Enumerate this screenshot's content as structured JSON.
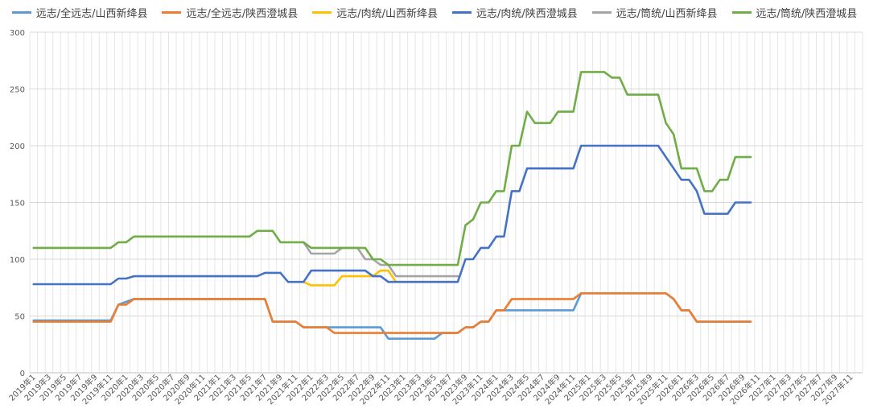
{
  "chart_data": {
    "type": "line",
    "title": "",
    "xlabel": "",
    "ylabel": "",
    "ylim": [
      0,
      300
    ],
    "yticks": [
      0,
      50,
      100,
      150,
      200,
      250,
      300
    ],
    "grid": true,
    "legend_position": "top",
    "x_tick_labels": [
      "2019年1",
      "2019年3",
      "2019年5",
      "2019年7",
      "2019年9",
      "2019年11",
      "2020年1",
      "2020年3",
      "2020年5",
      "2020年7",
      "2020年9",
      "2020年11",
      "2021年1",
      "2021年3",
      "2021年5",
      "2021年7",
      "2021年9",
      "2021年11",
      "2022年1",
      "2022年3",
      "2022年5",
      "2022年7",
      "2022年9",
      "2022年11",
      "2023年1",
      "2023年3",
      "2023年5",
      "2023年7",
      "2023年9",
      "2023年11",
      "2024年1",
      "2024年3",
      "2024年5",
      "2024年7",
      "2024年9",
      "2024年11",
      "2025年1",
      "2025年3",
      "2025年5",
      "2025年7",
      "2025年9",
      "2025年11",
      "2026年1",
      "2026年3",
      "2026年5",
      "2026年7",
      "2026年9",
      "2026年11",
      "2027年1",
      "2027年3",
      "2027年5",
      "2027年7",
      "2027年9",
      "2027年11"
    ],
    "n_months": 108,
    "series": [
      {
        "name": "远志/全远志/山西新绛县",
        "color": "#5B9BD5",
        "points": [
          [
            0,
            46
          ],
          [
            10,
            46
          ],
          [
            11,
            60
          ],
          [
            13,
            65
          ],
          [
            30,
            65
          ],
          [
            31,
            45
          ],
          [
            34,
            45
          ],
          [
            35,
            40
          ],
          [
            38,
            40
          ],
          [
            39,
            40
          ],
          [
            45,
            40
          ],
          [
            46,
            30
          ],
          [
            52,
            30
          ],
          [
            53,
            35
          ],
          [
            55,
            35
          ],
          [
            56,
            40
          ],
          [
            57,
            40
          ],
          [
            58,
            45
          ],
          [
            59,
            45
          ],
          [
            60,
            55
          ],
          [
            70,
            55
          ],
          [
            71,
            70
          ],
          [
            73,
            70
          ],
          [
            82,
            70
          ],
          [
            83,
            65
          ],
          [
            84,
            55
          ],
          [
            85,
            55
          ],
          [
            86,
            45
          ],
          [
            89,
            45
          ],
          [
            93,
            45
          ]
        ]
      },
      {
        "name": "远志/全远志/陕西澄城县",
        "color": "#ED7D31",
        "points": [
          [
            0,
            45
          ],
          [
            10,
            45
          ],
          [
            11,
            60
          ],
          [
            12,
            60
          ],
          [
            13,
            65
          ],
          [
            30,
            65
          ],
          [
            31,
            45
          ],
          [
            34,
            45
          ],
          [
            35,
            40
          ],
          [
            38,
            40
          ],
          [
            39,
            35
          ],
          [
            55,
            35
          ],
          [
            56,
            40
          ],
          [
            57,
            40
          ],
          [
            58,
            45
          ],
          [
            59,
            45
          ],
          [
            60,
            55
          ],
          [
            61,
            55
          ],
          [
            62,
            65
          ],
          [
            70,
            65
          ],
          [
            71,
            70
          ],
          [
            82,
            70
          ],
          [
            83,
            65
          ],
          [
            84,
            55
          ],
          [
            85,
            55
          ],
          [
            86,
            45
          ],
          [
            93,
            45
          ]
        ]
      },
      {
        "name": "远志/肉统/山西新绛县",
        "color": "#FFC000",
        "points": [
          [
            35,
            80
          ],
          [
            36,
            77
          ],
          [
            39,
            77
          ],
          [
            40,
            85
          ],
          [
            43,
            85
          ],
          [
            44,
            85
          ],
          [
            45,
            90
          ],
          [
            46,
            90
          ],
          [
            47,
            80
          ],
          [
            55,
            80
          ]
        ]
      },
      {
        "name": "远志/肉统/陕西澄城县",
        "color": "#4472C4",
        "points": [
          [
            0,
            78
          ],
          [
            10,
            78
          ],
          [
            11,
            83
          ],
          [
            12,
            83
          ],
          [
            13,
            85
          ],
          [
            29,
            85
          ],
          [
            30,
            88
          ],
          [
            32,
            88
          ],
          [
            33,
            80
          ],
          [
            35,
            80
          ],
          [
            36,
            90
          ],
          [
            43,
            90
          ],
          [
            44,
            85
          ],
          [
            45,
            85
          ],
          [
            46,
            80
          ],
          [
            55,
            80
          ],
          [
            56,
            100
          ],
          [
            57,
            100
          ],
          [
            58,
            110
          ],
          [
            59,
            110
          ],
          [
            60,
            120
          ],
          [
            61,
            120
          ],
          [
            62,
            160
          ],
          [
            63,
            160
          ],
          [
            64,
            180
          ],
          [
            70,
            180
          ],
          [
            71,
            200
          ],
          [
            81,
            200
          ],
          [
            82,
            190
          ],
          [
            83,
            180
          ],
          [
            84,
            170
          ],
          [
            85,
            170
          ],
          [
            86,
            160
          ],
          [
            87,
            140
          ],
          [
            90,
            140
          ],
          [
            91,
            150
          ],
          [
            93,
            150
          ]
        ]
      },
      {
        "name": "远志/筒统/山西新绛县",
        "color": "#A5A5A5",
        "points": [
          [
            35,
            115
          ],
          [
            36,
            105
          ],
          [
            38,
            105
          ],
          [
            39,
            105
          ],
          [
            40,
            110
          ],
          [
            42,
            110
          ],
          [
            43,
            100
          ],
          [
            44,
            100
          ],
          [
            45,
            95
          ],
          [
            46,
            95
          ],
          [
            47,
            85
          ],
          [
            55,
            85
          ]
        ]
      },
      {
        "name": "远志/筒统/陕西澄城县",
        "color": "#70AD47",
        "points": [
          [
            0,
            110
          ],
          [
            10,
            110
          ],
          [
            11,
            115
          ],
          [
            12,
            115
          ],
          [
            13,
            120
          ],
          [
            26,
            120
          ],
          [
            27,
            120
          ],
          [
            28,
            120
          ],
          [
            29,
            125
          ],
          [
            31,
            125
          ],
          [
            32,
            115
          ],
          [
            34,
            115
          ],
          [
            35,
            115
          ],
          [
            36,
            110
          ],
          [
            42,
            110
          ],
          [
            43,
            110
          ],
          [
            44,
            100
          ],
          [
            45,
            100
          ],
          [
            46,
            95
          ],
          [
            47,
            95
          ],
          [
            48,
            95
          ],
          [
            55,
            95
          ],
          [
            56,
            130
          ],
          [
            57,
            135
          ],
          [
            58,
            150
          ],
          [
            59,
            150
          ],
          [
            60,
            160
          ],
          [
            61,
            160
          ],
          [
            62,
            200
          ],
          [
            63,
            200
          ],
          [
            64,
            230
          ],
          [
            65,
            220
          ],
          [
            67,
            220
          ],
          [
            68,
            230
          ],
          [
            70,
            230
          ],
          [
            71,
            265
          ],
          [
            74,
            265
          ],
          [
            75,
            260
          ],
          [
            76,
            260
          ],
          [
            77,
            245
          ],
          [
            81,
            245
          ],
          [
            82,
            220
          ],
          [
            83,
            210
          ],
          [
            84,
            180
          ],
          [
            86,
            180
          ],
          [
            87,
            160
          ],
          [
            88,
            160
          ],
          [
            89,
            170
          ],
          [
            90,
            170
          ],
          [
            91,
            190
          ],
          [
            93,
            190
          ]
        ]
      }
    ]
  }
}
